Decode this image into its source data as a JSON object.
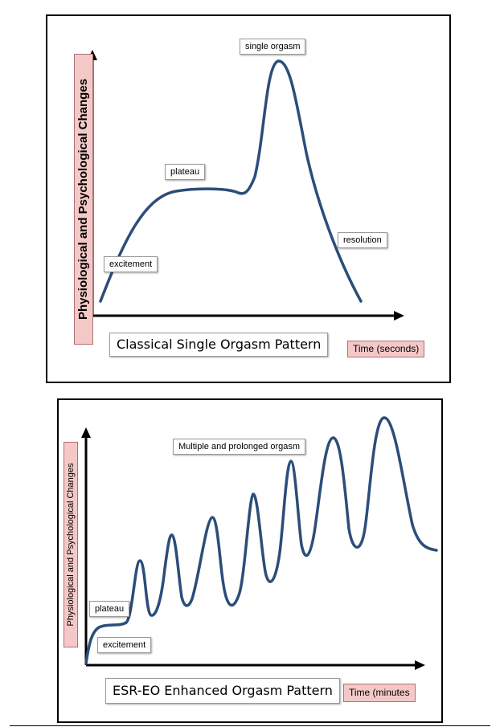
{
  "colors": {
    "curve": "#2c4d7a",
    "axis": "#000000",
    "pink_fill": "#f5c8c8",
    "panel_border": "#000000"
  },
  "top_chart": {
    "ylabel": "Physiological and Psychological Changes",
    "xlabel": "Time (seconds)",
    "title": "Classical Single Orgasm Pattern",
    "labels": {
      "excitement": "excitement",
      "plateau": "plateau",
      "peak": "single orgasm",
      "resolution": "resolution"
    }
  },
  "bottom_chart": {
    "ylabel": "Physiological and Psychological Changes",
    "xlabel": "Time (minutes",
    "title": "ESR-EO Enhanced Orgasm Pattern",
    "labels": {
      "plateau": "plateau",
      "excitement": "excitement",
      "peaks": "Multiple and  prolonged orgasm"
    }
  }
}
